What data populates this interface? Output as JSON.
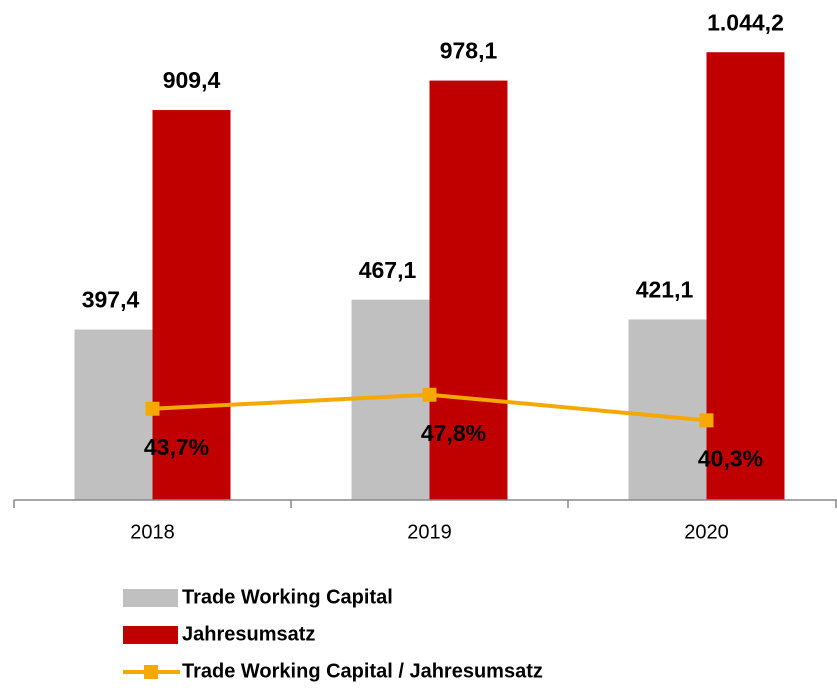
{
  "chart_data": {
    "type": "bar",
    "categories": [
      "2018",
      "2019",
      "2020"
    ],
    "series": [
      {
        "name": "Trade Working Capital",
        "color": "#c0c0c0",
        "values": [
          397.4,
          467.1,
          421.1
        ],
        "value_labels": [
          "397,4",
          "467,1",
          "421,1"
        ]
      },
      {
        "name": "Jahresumsatz",
        "color": "#c00000",
        "values": [
          909.4,
          978.1,
          1044.2
        ],
        "value_labels": [
          "909,4",
          "978,1",
          "1.044,2"
        ]
      },
      {
        "name": "Trade Working Capital / Jahresumsatz",
        "color": "#f5a800",
        "type": "line",
        "axis": "y2",
        "values": [
          43.7,
          47.8,
          40.3
        ],
        "value_labels": [
          "43,7%",
          "47,8%",
          "40,3%"
        ]
      }
    ],
    "ylim": [
      0,
      1100
    ],
    "y2lim": [
      17,
      155
    ],
    "legend": "bottom"
  }
}
